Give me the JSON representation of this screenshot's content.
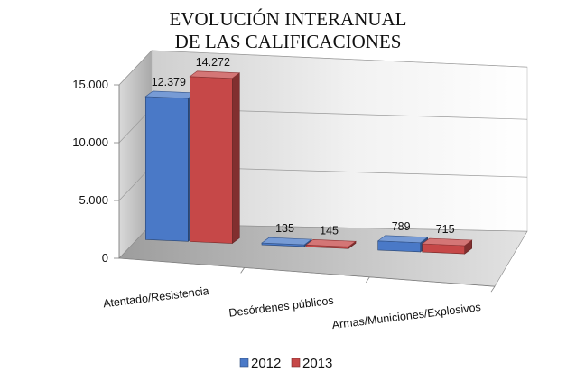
{
  "chart_data": {
    "type": "bar",
    "title_lines": [
      "EVOLUCIÓN INTERANUAL",
      "DE LAS CALIFICACIONES"
    ],
    "xlabel": "",
    "ylabel": "",
    "categories": [
      "Atentado/Resistencia",
      "Desórdenes públicos",
      "Armas/Municiones/Explosivos"
    ],
    "series": [
      {
        "name": "2012",
        "values": [
          12379,
          135,
          789
        ],
        "labels": [
          "12.379",
          "135",
          "789"
        ],
        "color": "#4a79c7"
      },
      {
        "name": "2013",
        "values": [
          14272,
          145,
          715
        ],
        "labels": [
          "14.272",
          "145",
          "715"
        ],
        "color": "#c64848"
      }
    ],
    "ylim": [
      0,
      15000
    ],
    "yticks": [
      0,
      5000,
      10000,
      15000
    ],
    "ytick_labels": [
      "0",
      "5.000",
      "10.000",
      "15.000"
    ],
    "grid": true,
    "legend_position": "bottom",
    "style": "3d-column"
  }
}
